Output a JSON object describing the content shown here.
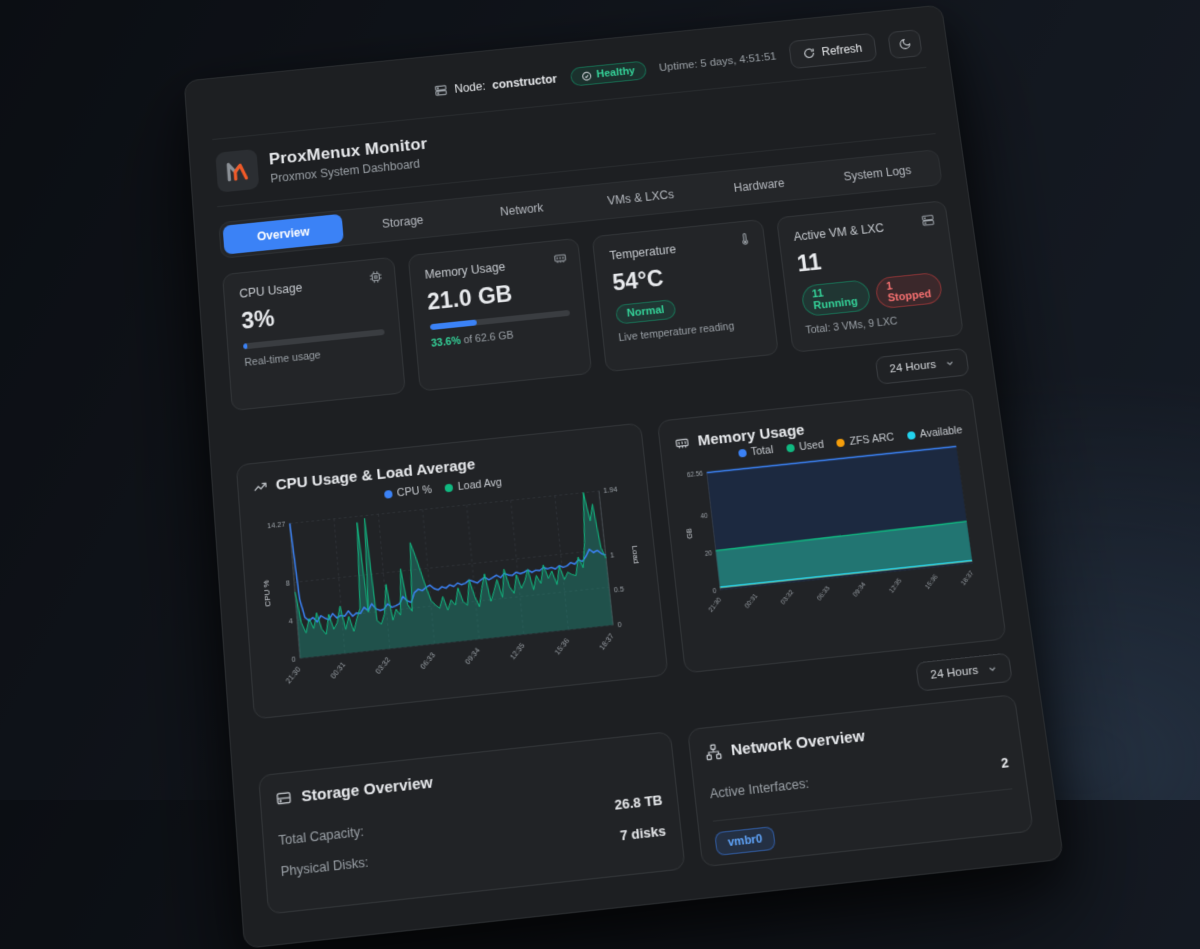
{
  "topbar": {
    "node_label": "Node:",
    "node_name": "constructor",
    "health_badge": "Healthy",
    "uptime": "Uptime: 5 days, 4:51:51",
    "refresh_label": "Refresh"
  },
  "header": {
    "title": "ProxMenux Monitor",
    "subtitle": "Proxmox System Dashboard"
  },
  "tabs": [
    {
      "label": "Overview",
      "active": true
    },
    {
      "label": "Storage"
    },
    {
      "label": "Network"
    },
    {
      "label": "VMs & LXCs"
    },
    {
      "label": "Hardware"
    },
    {
      "label": "System Logs"
    }
  ],
  "stats": {
    "cpu": {
      "label": "CPU Usage",
      "value": "3%",
      "pct": 3,
      "note": "Real-time usage"
    },
    "memory": {
      "label": "Memory Usage",
      "value": "21.0 GB",
      "pct": 33.6,
      "pct_text": "33.6%",
      "of_text": " of 62.6 GB"
    },
    "temperature": {
      "label": "Temperature",
      "value": "54°C",
      "badge": "Normal",
      "note": "Live temperature reading"
    },
    "vms": {
      "label": "Active VM & LXC",
      "value": "11",
      "running_badge": "11 Running",
      "stopped_badge": "1 Stopped",
      "note": "Total: 3 VMs, 9 LXC"
    }
  },
  "range_selector": {
    "label": "24 Hours"
  },
  "sections": {
    "storage": {
      "title": "Storage Overview",
      "rows": [
        {
          "label": "Total Capacity:",
          "value": "26.8 TB"
        },
        {
          "label": "Physical Disks:",
          "value": "7 disks"
        }
      ]
    },
    "network": {
      "title": "Network Overview",
      "active_interfaces_label": "Active Interfaces:",
      "active_interfaces_value": "2",
      "interface_badge": "vmbr0"
    }
  },
  "colors": {
    "accent": "#3b82f6",
    "green": "#10b981",
    "red": "#ef4444",
    "orange": "#f59e0b",
    "cyan": "#22d3ee"
  },
  "chart_data": [
    {
      "id": "cpu_load",
      "type": "line",
      "title": "CPU Usage & Load Average",
      "x_ticks": [
        "21:30",
        "00:31",
        "03:32",
        "06:33",
        "09:34",
        "12:35",
        "15:36",
        "18:37"
      ],
      "y_left": {
        "label": "CPU %",
        "ticks": [
          0,
          4,
          8,
          14.27
        ],
        "max": 14.27
      },
      "y_right": {
        "label": "Load",
        "ticks": [
          0,
          0.5,
          1,
          1.94
        ],
        "max": 1.94
      },
      "grid": true,
      "legend_position": "top",
      "series": [
        {
          "name": "CPU %",
          "axis": "left",
          "color": "#3b82f6",
          "values": [
            14.27,
            6.2,
            4.2,
            3.8,
            4.1,
            3.6,
            4.2,
            3.9,
            3.7,
            4.3,
            3.8,
            4.0,
            3.9,
            4.4,
            3.8,
            4.1,
            4.0,
            4.6,
            4.2,
            4.9,
            4.3,
            4.1,
            4.2,
            4.7,
            4.3,
            4.4,
            4.6,
            5.3,
            4.8,
            4.6,
            5.6,
            5.9,
            5.7,
            6.0,
            6.2,
            5.8,
            5.6,
            5.9,
            5.7,
            6.0,
            5.8,
            6.1,
            5.9,
            6.0,
            6.3,
            6.1,
            5.9,
            6.2,
            6.4,
            6.1,
            6.3,
            6.5,
            6.2,
            6.6,
            6.4,
            6.3,
            6.6,
            6.4,
            6.5,
            6.7,
            6.4,
            6.6,
            6.5,
            6.8,
            6.6,
            6.7,
            6.5,
            6.8,
            6.6,
            6.7,
            7.0,
            6.8,
            7.2,
            7.0,
            7.5,
            8.2,
            7.8,
            8.0,
            7.6,
            7.4
          ]
        },
        {
          "name": "Load Avg",
          "axis": "right",
          "color": "#10b981",
          "fill": "rgba(32,158,138,0.38)",
          "values": [
            0.95,
            0.5,
            0.35,
            0.55,
            0.4,
            0.62,
            0.38,
            0.3,
            0.58,
            0.36,
            0.45,
            0.68,
            0.34,
            0.52,
            0.3,
            0.48,
            0.62,
            1.85,
            0.55,
            1.9,
            0.42,
            0.36,
            0.5,
            0.92,
            0.4,
            0.55,
            0.46,
            1.12,
            0.6,
            0.5,
            1.48,
            1.28,
            1.05,
            0.82,
            0.62,
            0.55,
            0.5,
            0.66,
            0.46,
            0.6,
            0.52,
            0.76,
            0.56,
            0.5,
            0.86,
            0.62,
            0.46,
            0.72,
            0.92,
            0.52,
            0.66,
            0.82,
            0.56,
            0.96,
            0.7,
            0.6,
            0.86,
            0.66,
            0.76,
            0.92,
            0.62,
            0.82,
            0.7,
            0.96,
            0.76,
            0.86,
            0.66,
            0.92,
            0.72,
            0.82,
            0.78,
            0.76,
            1.02,
            0.86,
            1.22,
            1.94,
            1.52,
            1.76,
            1.12,
            0.96
          ]
        }
      ]
    },
    {
      "id": "memory",
      "type": "area",
      "title": "Memory Usage",
      "x_ticks": [
        "21:30",
        "00:31",
        "03:32",
        "06:33",
        "09:34",
        "12:35",
        "15:36",
        "18:37"
      ],
      "y": {
        "label": "GB",
        "ticks": [
          0,
          20,
          40,
          62.56
        ],
        "max": 62.56
      },
      "grid": true,
      "legend_position": "top",
      "series": [
        {
          "name": "Total",
          "color": "#3b82f6",
          "fill": "#1c2940",
          "values": [
            62.56,
            62.56,
            62.56,
            62.56,
            62.56,
            62.56,
            62.56,
            62.56
          ]
        },
        {
          "name": "Used",
          "color": "#10b981",
          "fill": "rgba(38,168,148,0.6)",
          "values": [
            20.8,
            21.0,
            21.2,
            21.4,
            21.6,
            21.8,
            22.0,
            22.3
          ]
        },
        {
          "name": "ZFS ARC",
          "color": "#f59e0b",
          "values": [
            1.2,
            1.2,
            1.2,
            1.2,
            1.2,
            1.2,
            1.2,
            1.2
          ]
        },
        {
          "name": "Available",
          "color": "#22d3ee",
          "values": [
            1.4,
            1.4,
            1.4,
            1.4,
            1.4,
            1.4,
            1.4,
            1.4
          ]
        }
      ]
    }
  ]
}
